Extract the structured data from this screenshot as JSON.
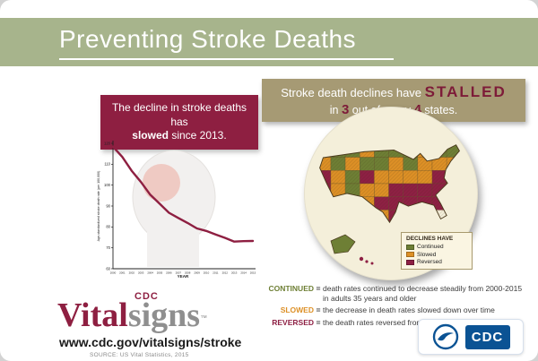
{
  "header": {
    "title": "Preventing Stroke Deaths"
  },
  "chart_panel": {
    "headline": {
      "pre": "The decline in stroke deaths has",
      "em": "slowed",
      "post": "since 2013."
    }
  },
  "chart_data": {
    "type": "line",
    "title": "The decline in stroke deaths has slowed since 2013.",
    "ylabel": "Age-standardized stroke death rate (per 100,000)",
    "xlabel": "YEAR",
    "x": [
      2000,
      2001,
      2002,
      2003,
      2004,
      2005,
      2006,
      2007,
      2008,
      2009,
      2010,
      2011,
      2012,
      2013,
      2014,
      2015
    ],
    "values": [
      118.4,
      113.5,
      106.9,
      101.5,
      95.4,
      91.1,
      86.8,
      84.3,
      81.9,
      79.3,
      78.1,
      76.4,
      74.8,
      73.0,
      73.2,
      73.3
    ],
    "ylim": [
      60,
      120
    ],
    "yticks": [
      120,
      110,
      100,
      90,
      80,
      70,
      60
    ],
    "line_color": "#8e1f41",
    "legend_position": "none",
    "grid": false
  },
  "map_panel": {
    "banner": {
      "l1a": "Stroke death declines have",
      "l1b": "STALLED",
      "l2a": "in",
      "l2b": "3",
      "l2c": "out of every",
      "l2d": "4",
      "l2e": "states."
    },
    "legend": {
      "title": "DECLINES HAVE",
      "items": [
        {
          "label": "Continued",
          "color": "#6e7f35"
        },
        {
          "label": "Slowed",
          "color": "#dd9026"
        },
        {
          "label": "Reversed",
          "color": "#8e2044"
        }
      ]
    },
    "grid": [
      "MGGOGGGOGG",
      "OGOGGOGOOO",
      "MOGMOOOOMO",
      "MOGOOMMMMM",
      ".OGOMMMMM.",
      "...OOMMM.."
    ],
    "colors": {
      "G": "#6e7f35",
      "O": "#dd9026",
      "M": "#8e2044"
    }
  },
  "definitions": [
    {
      "term": "CONTINUED",
      "sep": "=",
      "text": "death rates continued to decrease steadily from 2000-2015 in adults 35 years and older",
      "color": "#6e7f35"
    },
    {
      "term": "SLOWED",
      "sep": "=",
      "text": "the decrease in death rates slowed down over time",
      "color": "#dd9026"
    },
    {
      "term": "REVERSED",
      "sep": "=",
      "text": "the death rates reversed from decreasing to increasing",
      "color": "#8e2044"
    }
  ],
  "footer": {
    "logo": {
      "cdc": "CDC",
      "vital": "Vital",
      "signs": "signs",
      "tm": "™"
    },
    "url": "www.cdc.gov/vitalsigns/stroke",
    "source": "SOURCE: US Vital Statistics, 2015",
    "agency_label": "CDC"
  },
  "colors": {
    "header_green": "#a7b48c",
    "maroon": "#8e1f41",
    "banner_tan": "#a69a74",
    "map_circle_bg": "#f4efda",
    "cdc_blue": "#0b5394"
  }
}
